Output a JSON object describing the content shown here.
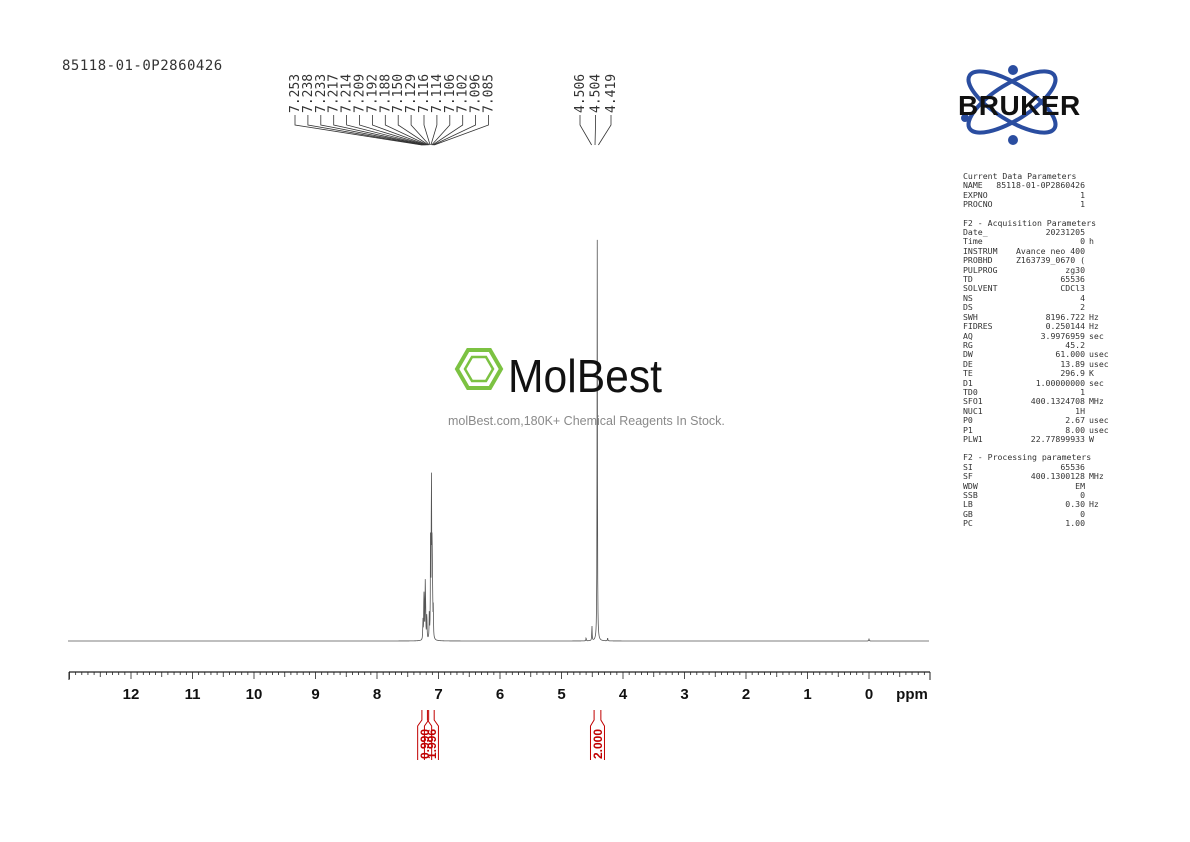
{
  "sample_id": "85118-01-0P2860426",
  "watermark": {
    "brand": "MolBest",
    "caption": "molBest.com,180K+ Chemical Reagents In Stock."
  },
  "logo": {
    "text": "BRUKER"
  },
  "chart_data": {
    "type": "line",
    "title": "",
    "xlabel": "ppm",
    "ylabel": "",
    "x_reversed": true,
    "xlim": [
      13,
      -1
    ],
    "x_ticks": [
      "12",
      "11",
      "10",
      "9",
      "8",
      "7",
      "6",
      "5",
      "4",
      "3",
      "2",
      "1",
      "0"
    ],
    "grid": false,
    "peak_labels": {
      "aromatic": [
        "7.253",
        "7.238",
        "7.233",
        "7.217",
        "7.214",
        "7.209",
        "7.192",
        "7.188",
        "7.150",
        "7.129",
        "7.116",
        "7.114",
        "7.106",
        "7.102",
        "7.096",
        "7.085"
      ],
      "aliphatic": [
        "4.506",
        "4.504",
        "4.419"
      ]
    },
    "peaks": [
      {
        "ppm": 7.253,
        "h": 0.05
      },
      {
        "ppm": 7.238,
        "h": 0.09
      },
      {
        "ppm": 7.233,
        "h": 0.08
      },
      {
        "ppm": 7.217,
        "h": 0.085
      },
      {
        "ppm": 7.214,
        "h": 0.07
      },
      {
        "ppm": 7.209,
        "h": 0.06
      },
      {
        "ppm": 7.192,
        "h": 0.04
      },
      {
        "ppm": 7.188,
        "h": 0.035
      },
      {
        "ppm": 7.15,
        "h": 0.06
      },
      {
        "ppm": 7.129,
        "h": 0.26
      },
      {
        "ppm": 7.116,
        "h": 0.23
      },
      {
        "ppm": 7.114,
        "h": 0.2
      },
      {
        "ppm": 7.106,
        "h": 0.14
      },
      {
        "ppm": 7.102,
        "h": 0.12
      },
      {
        "ppm": 7.096,
        "h": 0.09
      },
      {
        "ppm": 7.085,
        "h": 0.07
      },
      {
        "ppm": 4.506,
        "h": 0.02
      },
      {
        "ppm": 4.504,
        "h": 0.02
      },
      {
        "ppm": 4.419,
        "h": 1.0
      },
      {
        "ppm": 4.6,
        "h": 0.008
      },
      {
        "ppm": 4.25,
        "h": 0.008
      },
      {
        "ppm": 0.0,
        "h": 0.006
      }
    ],
    "integrals": [
      {
        "value": "0.990",
        "from": 7.27,
        "to": 7.18
      },
      {
        "value": "1.996",
        "from": 7.16,
        "to": 7.07
      },
      {
        "value": "2.000",
        "from": 4.47,
        "to": 4.36
      }
    ]
  },
  "parameters": {
    "current": {
      "title": "Current Data Parameters",
      "rows": [
        {
          "k": "NAME",
          "v": "85118-01-0P2860426",
          "u": ""
        },
        {
          "k": "EXPNO",
          "v": "1",
          "u": ""
        },
        {
          "k": "PROCNO",
          "v": "1",
          "u": ""
        }
      ]
    },
    "acquisition": {
      "title": "F2 - Acquisition Parameters",
      "rows": [
        {
          "k": "Date_",
          "v": "20231205",
          "u": ""
        },
        {
          "k": "Time",
          "v": "0",
          "u": "h"
        },
        {
          "k": "INSTRUM",
          "v": "Avance neo 400",
          "u": ""
        },
        {
          "k": "PROBHD",
          "v": "Z163739_0670 (",
          "u": ""
        },
        {
          "k": "PULPROG",
          "v": "zg30",
          "u": ""
        },
        {
          "k": "TD",
          "v": "65536",
          "u": ""
        },
        {
          "k": "SOLVENT",
          "v": "CDCl3",
          "u": ""
        },
        {
          "k": "NS",
          "v": "4",
          "u": ""
        },
        {
          "k": "DS",
          "v": "2",
          "u": ""
        },
        {
          "k": "SWH",
          "v": "8196.722",
          "u": "Hz"
        },
        {
          "k": "FIDRES",
          "v": "0.250144",
          "u": "Hz"
        },
        {
          "k": "AQ",
          "v": "3.9976959",
          "u": "sec"
        },
        {
          "k": "RG",
          "v": "45.2",
          "u": ""
        },
        {
          "k": "DW",
          "v": "61.000",
          "u": "usec"
        },
        {
          "k": "DE",
          "v": "13.89",
          "u": "usec"
        },
        {
          "k": "TE",
          "v": "296.9",
          "u": "K"
        },
        {
          "k": "D1",
          "v": "1.00000000",
          "u": "sec"
        },
        {
          "k": "TD0",
          "v": "1",
          "u": ""
        },
        {
          "k": "SFO1",
          "v": "400.1324708",
          "u": "MHz"
        },
        {
          "k": "NUC1",
          "v": "1H",
          "u": ""
        },
        {
          "k": "P0",
          "v": "2.67",
          "u": "usec"
        },
        {
          "k": "P1",
          "v": "8.00",
          "u": "usec"
        },
        {
          "k": "PLW1",
          "v": "22.77899933",
          "u": "W"
        }
      ]
    },
    "processing": {
      "title": "F2 - Processing parameters",
      "rows": [
        {
          "k": "SI",
          "v": "65536",
          "u": ""
        },
        {
          "k": "SF",
          "v": "400.1300128",
          "u": "MHz"
        },
        {
          "k": "WDW",
          "v": "EM",
          "u": ""
        },
        {
          "k": "SSB",
          "v": "0",
          "u": ""
        },
        {
          "k": "LB",
          "v": "0.30",
          "u": "Hz"
        },
        {
          "k": "GB",
          "v": "0",
          "u": ""
        },
        {
          "k": "PC",
          "v": "1.00",
          "u": ""
        }
      ]
    }
  }
}
